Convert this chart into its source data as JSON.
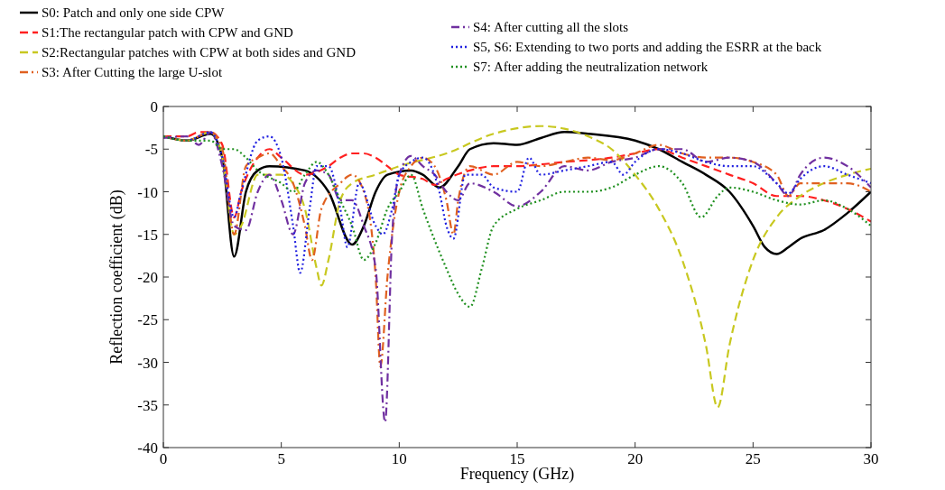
{
  "chart_data": {
    "type": "line",
    "xlabel": "Frequency (GHz)",
    "ylabel": "Reflection coefficient (dB)",
    "xlim": [
      0,
      30
    ],
    "ylim": [
      -40,
      0
    ],
    "xticks": [
      0,
      5,
      10,
      15,
      20,
      25,
      30
    ],
    "yticks": [
      -40,
      -35,
      -30,
      -25,
      -20,
      -15,
      -10,
      -5,
      0
    ],
    "grid": false,
    "legend": "top",
    "series": [
      {
        "name": "S0: Patch and only one side CPW",
        "color": "#000000",
        "line_style": "solid",
        "x": [
          0,
          1,
          2,
          2.5,
          3,
          3.5,
          4,
          4.5,
          6,
          7,
          8,
          8.5,
          9,
          9.5,
          10.5,
          11,
          11.7,
          12.5,
          13,
          14,
          15,
          16,
          17,
          18,
          20,
          21,
          22,
          23,
          24,
          25,
          25.5,
          26,
          26.5,
          27,
          28,
          29,
          30
        ],
        "values": [
          -3.5,
          -4,
          -3.2,
          -6,
          -17.6,
          -10,
          -7.5,
          -7,
          -7.5,
          -10,
          -16.2,
          -14,
          -10,
          -8,
          -7.5,
          -8,
          -9.5,
          -7,
          -5,
          -4.3,
          -4.5,
          -3.7,
          -3,
          -3.2,
          -4,
          -5,
          -6.5,
          -8,
          -10,
          -14,
          -16.5,
          -17.3,
          -16.5,
          -15.5,
          -14.5,
          -12.5,
          -10
        ]
      },
      {
        "name": "S1:The rectangular patch with CPW and GND",
        "color": "#ff2020",
        "line_style": "dashed",
        "x": [
          0,
          1,
          1.5,
          2,
          2.5,
          3,
          3.3,
          4,
          4.5,
          5,
          6,
          7,
          7.5,
          8,
          8.5,
          9,
          9.5,
          10,
          11,
          11.5,
          12,
          13,
          14,
          15,
          16,
          17,
          18,
          19,
          20,
          21,
          22,
          23,
          24,
          25,
          26,
          27,
          28,
          29,
          30
        ],
        "values": [
          -3.5,
          -3.5,
          -3,
          -3,
          -4.5,
          -13,
          -10,
          -6,
          -5,
          -6,
          -8,
          -7,
          -6,
          -5.5,
          -5.5,
          -6,
          -7,
          -8,
          -8.5,
          -9.2,
          -8.5,
          -7.5,
          -7,
          -7,
          -6.8,
          -6.5,
          -6.3,
          -6,
          -5.5,
          -5,
          -6,
          -7,
          -8,
          -9,
          -10.5,
          -10.5,
          -11,
          -12,
          -13.5
        ]
      },
      {
        "name": "S2:Rectangular patches with CPW at both sides and GND",
        "color": "#c8c820",
        "line_style": "dashed",
        "x": [
          0,
          1,
          2,
          2.5,
          3,
          3.3,
          4,
          5,
          5.5,
          6,
          6.5,
          6.7,
          7,
          7.5,
          8,
          9,
          10,
          12,
          14,
          16,
          17,
          18,
          19,
          20,
          21,
          22,
          23,
          23.5,
          24,
          25,
          26,
          27,
          28,
          29,
          30
        ],
        "values": [
          -3.5,
          -4,
          -3,
          -6,
          -15,
          -14,
          -8,
          -8,
          -9,
          -12,
          -19,
          -21,
          -18,
          -11,
          -9,
          -8,
          -7,
          -5.5,
          -3.2,
          -2.3,
          -2.6,
          -3.5,
          -5,
          -8,
          -12,
          -18,
          -28,
          -35.3,
          -28,
          -18,
          -13,
          -10.5,
          -9,
          -8,
          -7.3
        ]
      },
      {
        "name": "S3: After Cutting the large U-slot",
        "color": "#e06020",
        "line_style": "dashdot",
        "x": [
          0,
          1,
          2,
          2.5,
          3,
          3.5,
          4,
          4.5,
          5,
          5.5,
          6,
          6.3,
          6.7,
          7.5,
          8,
          8.5,
          9,
          9.2,
          9.5,
          10,
          10.5,
          11,
          11.5,
          12,
          12.3,
          12.5,
          13,
          14,
          15,
          16,
          17,
          18,
          19,
          20,
          21,
          22,
          23,
          24,
          25,
          26,
          26.5,
          27,
          28,
          29,
          30
        ],
        "values": [
          -3.5,
          -4,
          -3,
          -5,
          -15,
          -7,
          -6,
          -5.5,
          -7,
          -9,
          -14,
          -18,
          -12,
          -9,
          -8,
          -10,
          -20,
          -30.5,
          -20,
          -10,
          -7,
          -6,
          -7,
          -11,
          -15,
          -11,
          -7,
          -8,
          -6.5,
          -7,
          -6.5,
          -6,
          -6.3,
          -5.5,
          -4.5,
          -5.5,
          -6,
          -6,
          -6.5,
          -8,
          -10.5,
          -9,
          -9,
          -9,
          -10
        ]
      },
      {
        "name": "S4: After cutting all the slots",
        "color": "#7030a0",
        "line_style": "dashdot",
        "x": [
          0,
          1,
          1.5,
          2,
          2.5,
          3,
          3.5,
          4,
          4.5,
          5,
          5.5,
          6,
          6.5,
          7,
          7.5,
          8,
          8.5,
          9,
          9.4,
          9.7,
          10,
          10.5,
          11,
          11.5,
          12,
          12.5,
          13,
          14,
          15,
          16,
          17,
          18,
          19,
          20,
          21,
          22,
          23,
          24,
          25,
          26,
          26.5,
          27,
          28,
          29,
          30
        ],
        "values": [
          -3.7,
          -3.5,
          -4.5,
          -3,
          -7,
          -14,
          -14.5,
          -10,
          -8,
          -11,
          -15,
          -9,
          -7.5,
          -8,
          -11,
          -11,
          -14,
          -19,
          -37,
          -15,
          -8,
          -5.8,
          -7,
          -8,
          -10,
          -11,
          -9,
          -10,
          -11.7,
          -10,
          -7,
          -7.5,
          -6.5,
          -6,
          -5,
          -5,
          -6.5,
          -6,
          -6.5,
          -9,
          -10.5,
          -8,
          -6,
          -7,
          -9.5
        ]
      },
      {
        "name": "S5, S6: Extending to two ports and adding the ESRR at the back",
        "color": "#2020e0",
        "line_style": "dotted",
        "x": [
          0,
          1,
          2,
          2.5,
          3,
          3.3,
          4,
          4.5,
          5,
          5.5,
          5.8,
          6.2,
          6.5,
          7,
          7.5,
          7.8,
          8.3,
          9,
          9.3,
          9.7,
          10,
          10.5,
          11,
          11.7,
          12,
          12.3,
          12.8,
          13.5,
          14,
          15,
          15.5,
          16,
          17,
          18,
          19,
          19.5,
          20,
          21,
          22,
          23,
          24,
          25,
          26,
          26.5,
          27,
          28,
          29,
          30
        ],
        "values": [
          -3.5,
          -4,
          -3,
          -6,
          -13,
          -10,
          -4,
          -3.5,
          -6,
          -14,
          -19.5,
          -12,
          -7,
          -7,
          -12,
          -16.5,
          -9,
          -14,
          -15,
          -12,
          -8,
          -6.5,
          -6,
          -10,
          -14,
          -15.5,
          -8,
          -8,
          -9.5,
          -10,
          -6,
          -8,
          -7.5,
          -7,
          -6.5,
          -8,
          -6.5,
          -5,
          -5.5,
          -6.5,
          -7,
          -7,
          -9,
          -10.2,
          -8.5,
          -7,
          -8,
          -9
        ]
      },
      {
        "name": "S7: After adding the neutralization network",
        "color": "#209020",
        "line_style": "dotted",
        "x": [
          0,
          1,
          2,
          2.5,
          3,
          3.5,
          4,
          5,
          5.5,
          6,
          6.5,
          7,
          7.5,
          8,
          8.5,
          9,
          9.5,
          10,
          10.5,
          11,
          12,
          12.5,
          13,
          13.5,
          14,
          15,
          16,
          17,
          18,
          19,
          20,
          21,
          22,
          22.8,
          23.5,
          24,
          25,
          26,
          27,
          28,
          29,
          30
        ],
        "values": [
          -3.5,
          -4,
          -4,
          -5,
          -5,
          -6,
          -7.5,
          -9,
          -10,
          -8,
          -6.5,
          -8,
          -11,
          -14,
          -18,
          -16,
          -12,
          -10,
          -8,
          -12,
          -19,
          -22,
          -23.5,
          -19,
          -14,
          -12,
          -11,
          -10,
          -10,
          -9.5,
          -8,
          -7,
          -9,
          -13,
          -10.5,
          -9.5,
          -10,
          -11,
          -11.5,
          -11,
          -12,
          -14
        ]
      }
    ]
  }
}
